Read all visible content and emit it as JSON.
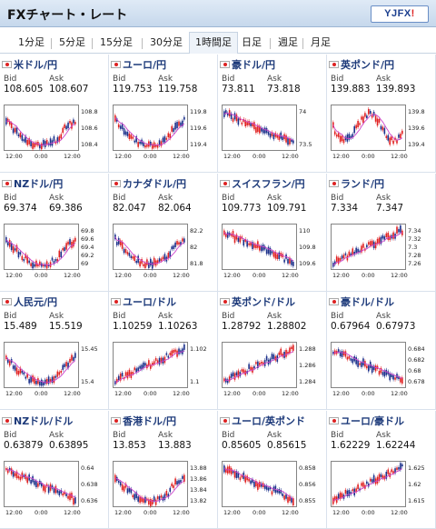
{
  "header": {
    "title": "FXチャート・レート",
    "logo_main": "YJFX",
    "logo_bang": "!"
  },
  "tabs": [
    {
      "label": "1分足",
      "selected": false
    },
    {
      "label": "5分足",
      "selected": false
    },
    {
      "label": "15分足",
      "selected": false
    },
    {
      "label": "30分足",
      "selected": false
    },
    {
      "label": "1時間足",
      "selected": true
    },
    {
      "label": "日足",
      "selected": false
    },
    {
      "label": "週足",
      "selected": false
    },
    {
      "label": "月足",
      "selected": false
    }
  ],
  "labels": {
    "bid": "Bid",
    "ask": "Ask"
  },
  "pairs": [
    {
      "name": "米ドル/円",
      "bid": "108.605",
      "ask": "108.607",
      "yticks": [
        "108.8",
        "108.6",
        "108.4"
      ],
      "xticks": [
        "12:00",
        "0:00",
        "12:00"
      ],
      "trend": "dip"
    },
    {
      "name": "ユーロ/円",
      "bid": "119.753",
      "ask": "119.758",
      "yticks": [
        "119.8",
        "119.6",
        "119.4"
      ],
      "xticks": [
        "12:00",
        "0:00",
        "12:00"
      ],
      "trend": "dip"
    },
    {
      "name": "豪ドル/円",
      "bid": "73.811",
      "ask": "73.818",
      "yticks": [
        "74",
        "73.5"
      ],
      "xticks": [
        "12:00",
        "0:00",
        "12:00"
      ],
      "trend": "down"
    },
    {
      "name": "英ポンド/円",
      "bid": "139.883",
      "ask": "139.893",
      "yticks": [
        "139.8",
        "139.6",
        "139.4"
      ],
      "xticks": [
        "12:00",
        "0:00",
        "12:00"
      ],
      "trend": "vol"
    },
    {
      "name": "NZドル/円",
      "bid": "69.374",
      "ask": "69.386",
      "yticks": [
        "69.8",
        "69.6",
        "69.4",
        "69.2",
        "69"
      ],
      "xticks": [
        "12:00",
        "0:00",
        "12:00"
      ],
      "trend": "dip"
    },
    {
      "name": "カナダドル/円",
      "bid": "82.047",
      "ask": "82.064",
      "yticks": [
        "82.2",
        "82",
        "81.8"
      ],
      "xticks": [
        "12:00",
        "0:00",
        "12:00"
      ],
      "trend": "dip"
    },
    {
      "name": "スイスフラン/円",
      "bid": "109.773",
      "ask": "109.791",
      "yticks": [
        "110",
        "109.8",
        "109.6"
      ],
      "xticks": [
        "12:00",
        "0:00",
        "12:00"
      ],
      "trend": "down"
    },
    {
      "name": "ランド/円",
      "bid": "7.334",
      "ask": "7.347",
      "yticks": [
        "7.34",
        "7.32",
        "7.3",
        "7.28",
        "7.26"
      ],
      "xticks": [
        "12:00",
        "0:00",
        "12:00"
      ],
      "trend": "up"
    },
    {
      "name": "人民元/円",
      "bid": "15.489",
      "ask": "15.519",
      "yticks": [
        "15.45",
        "15.4"
      ],
      "xticks": [
        "12:00",
        "0:00",
        "12:00"
      ],
      "trend": "dip"
    },
    {
      "name": "ユーロ/ドル",
      "bid": "1.10259",
      "ask": "1.10263",
      "yticks": [
        "1.102",
        "1.1"
      ],
      "xticks": [
        "12:00",
        "0:00",
        "12:00"
      ],
      "trend": "up"
    },
    {
      "name": "英ポンド/ドル",
      "bid": "1.28792",
      "ask": "1.28802",
      "yticks": [
        "1.288",
        "1.286",
        "1.284"
      ],
      "xticks": [
        "12:00",
        "0:00",
        "12:00"
      ],
      "trend": "up"
    },
    {
      "name": "豪ドル/ドル",
      "bid": "0.67964",
      "ask": "0.67973",
      "yticks": [
        "0.684",
        "0.682",
        "0.68",
        "0.678"
      ],
      "xticks": [
        "12:00",
        "0:00",
        "12:00"
      ],
      "trend": "down"
    },
    {
      "name": "NZドル/ドル",
      "bid": "0.63879",
      "ask": "0.63895",
      "yticks": [
        "0.64",
        "0.638",
        "0.636"
      ],
      "xticks": [
        "12:00",
        "0:00",
        "12:00"
      ],
      "trend": "down"
    },
    {
      "name": "香港ドル/円",
      "bid": "13.853",
      "ask": "13.883",
      "yticks": [
        "13.88",
        "13.86",
        "13.84",
        "13.82"
      ],
      "xticks": [
        "12:00",
        "0:00",
        "12:00"
      ],
      "trend": "dip"
    },
    {
      "name": "ユーロ/英ポンド",
      "bid": "0.85605",
      "ask": "0.85615",
      "yticks": [
        "0.858",
        "0.856",
        "0.855"
      ],
      "xticks": [
        "12:00",
        "0:00",
        "12:00"
      ],
      "trend": "down"
    },
    {
      "name": "ユーロ/豪ドル",
      "bid": "1.62229",
      "ask": "1.62244",
      "yticks": [
        "1.625",
        "1.62",
        "1.615"
      ],
      "xticks": [
        "12:00",
        "0:00",
        "12:00"
      ],
      "trend": "up"
    }
  ],
  "colors": {
    "up": "#e02020",
    "down": "#1a2f8a",
    "ma": "#cc44cc",
    "chart_bg": "#ffffff"
  }
}
